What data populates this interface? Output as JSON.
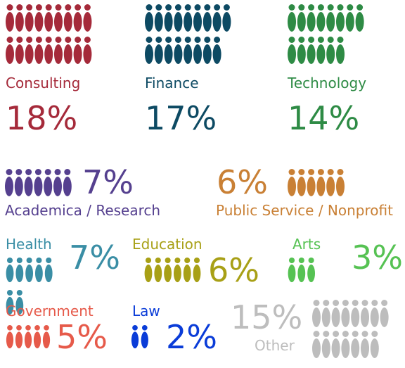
{
  "chart_data": {
    "type": "pictograph",
    "unit": "%",
    "categories": [
      "Consulting",
      "Finance",
      "Technology",
      "Academica / Research",
      "Public Service / Nonprofit",
      "Health",
      "Education",
      "Arts",
      "Government",
      "Law",
      "Other"
    ],
    "values": [
      18,
      17,
      14,
      7,
      6,
      7,
      6,
      3,
      5,
      2,
      15
    ],
    "value_labels": [
      "18%",
      "17%",
      "14%",
      "7%",
      "6%",
      "7%",
      "6%",
      "3%",
      "5%",
      "2%",
      "15%"
    ],
    "colors": [
      "#a52a3a",
      "#0d4a63",
      "#2e8b45",
      "#55408f",
      "#c98035",
      "#3a8ea5",
      "#a8a016",
      "#56c253",
      "#e65a4a",
      "#0a3cd8",
      "#bdbdbd"
    ]
  }
}
